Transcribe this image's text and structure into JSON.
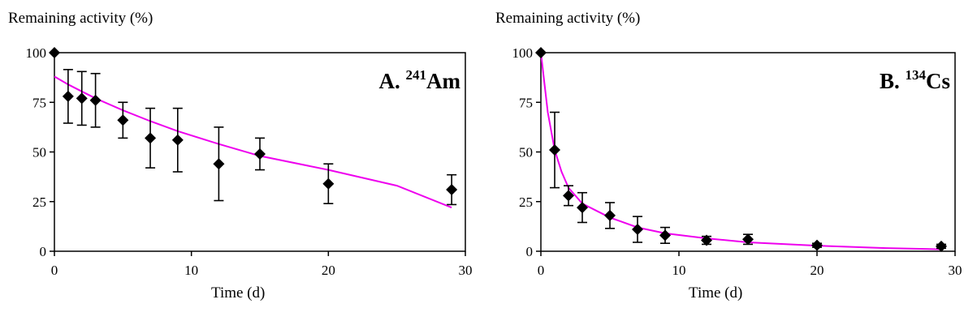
{
  "chart_data": [
    {
      "type": "scatter",
      "title": "A. 241Am",
      "title_prefix": "A.",
      "title_superscript": "241",
      "title_element": "Am",
      "ylabel": "Remaining activity (%)",
      "xlabel": "Time (d)",
      "xlim": [
        0,
        30
      ],
      "ylim": [
        0,
        100
      ],
      "xticks": [
        0,
        10,
        20,
        30
      ],
      "yticks": [
        0,
        25,
        50,
        75,
        100
      ],
      "grid": false,
      "marker": "diamond",
      "marker_color": "#000000",
      "fit_color": "#ee00ee",
      "points": [
        {
          "x": 0,
          "y": 100,
          "err": 0
        },
        {
          "x": 1,
          "y": 78,
          "err": 13.5
        },
        {
          "x": 2,
          "y": 77,
          "err": 13.5
        },
        {
          "x": 3,
          "y": 76,
          "err": 13.5
        },
        {
          "x": 5,
          "y": 66,
          "err": 9
        },
        {
          "x": 7,
          "y": 57,
          "err": 15
        },
        {
          "x": 9,
          "y": 56,
          "err": 16
        },
        {
          "x": 12,
          "y": 44,
          "err": 18.5
        },
        {
          "x": 15,
          "y": 49,
          "err": 8
        },
        {
          "x": 20,
          "y": 34,
          "err": 10
        },
        {
          "x": 29,
          "y": 31,
          "err": 7.5
        }
      ],
      "fit_curve": {
        "x": [
          0,
          1,
          2,
          3,
          5,
          7,
          9,
          12,
          15,
          20,
          25,
          29
        ],
        "y": [
          88,
          84,
          80.5,
          77,
          71,
          65.5,
          60.5,
          54,
          48,
          41,
          33,
          22
        ]
      }
    },
    {
      "type": "scatter",
      "title": "B. 134Cs",
      "title_prefix": "B.",
      "title_superscript": "134",
      "title_element": "Cs",
      "ylabel": "Remaining activity (%)",
      "xlabel": "Time (d)",
      "xlim": [
        0,
        30
      ],
      "ylim": [
        0,
        100
      ],
      "xticks": [
        0,
        10,
        20,
        30
      ],
      "yticks": [
        0,
        25,
        50,
        75,
        100
      ],
      "grid": false,
      "marker": "diamond",
      "marker_color": "#000000",
      "fit_color": "#ee00ee",
      "points": [
        {
          "x": 0,
          "y": 100,
          "err": 0
        },
        {
          "x": 1,
          "y": 51,
          "err": 19
        },
        {
          "x": 2,
          "y": 28,
          "err": 5
        },
        {
          "x": 3,
          "y": 22,
          "err": 7.5
        },
        {
          "x": 5,
          "y": 18,
          "err": 6.5
        },
        {
          "x": 7,
          "y": 11,
          "err": 6.5
        },
        {
          "x": 9,
          "y": 8,
          "err": 4
        },
        {
          "x": 12,
          "y": 5.5,
          "err": 2
        },
        {
          "x": 15,
          "y": 6,
          "err": 2.5
        },
        {
          "x": 20,
          "y": 3,
          "err": 1
        },
        {
          "x": 29,
          "y": 2.5,
          "err": 1
        }
      ],
      "fit_curve": {
        "x": [
          0,
          0.5,
          1,
          1.5,
          2,
          3,
          4,
          5,
          7,
          9,
          12,
          15,
          20,
          25,
          29
        ],
        "y": [
          100,
          70,
          51,
          40,
          32,
          24,
          20.5,
          17,
          12,
          9,
          6.5,
          4.5,
          2.8,
          1.6,
          1
        ]
      }
    }
  ]
}
